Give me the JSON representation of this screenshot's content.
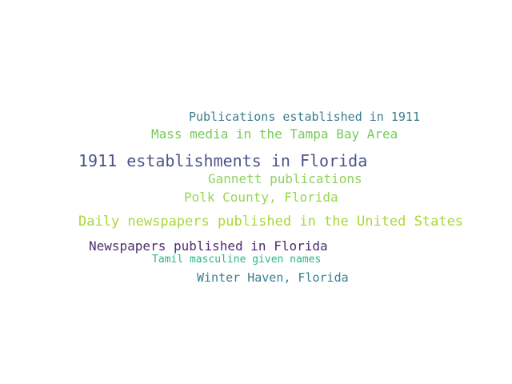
{
  "words": [
    {
      "text": "Publications established in 1911",
      "color": "#3b7c8f"
    },
    {
      "text": "Mass media in the Tampa Bay Area",
      "color": "#77c95a"
    },
    {
      "text": "1911 establishments in Florida",
      "color": "#4a5489"
    },
    {
      "text": "Gannett publications",
      "color": "#8ed35f"
    },
    {
      "text": "Polk County, Florida",
      "color": "#98d64f"
    },
    {
      "text": "Daily newspapers published in the United States",
      "color": "#a8d83a"
    },
    {
      "text": "Newspapers published in Florida",
      "color": "#4b2c6f"
    },
    {
      "text": "Tamil masculine given names",
      "color": "#2db48c"
    },
    {
      "text": "Winter Haven, Florida",
      "color": "#34808f"
    }
  ]
}
